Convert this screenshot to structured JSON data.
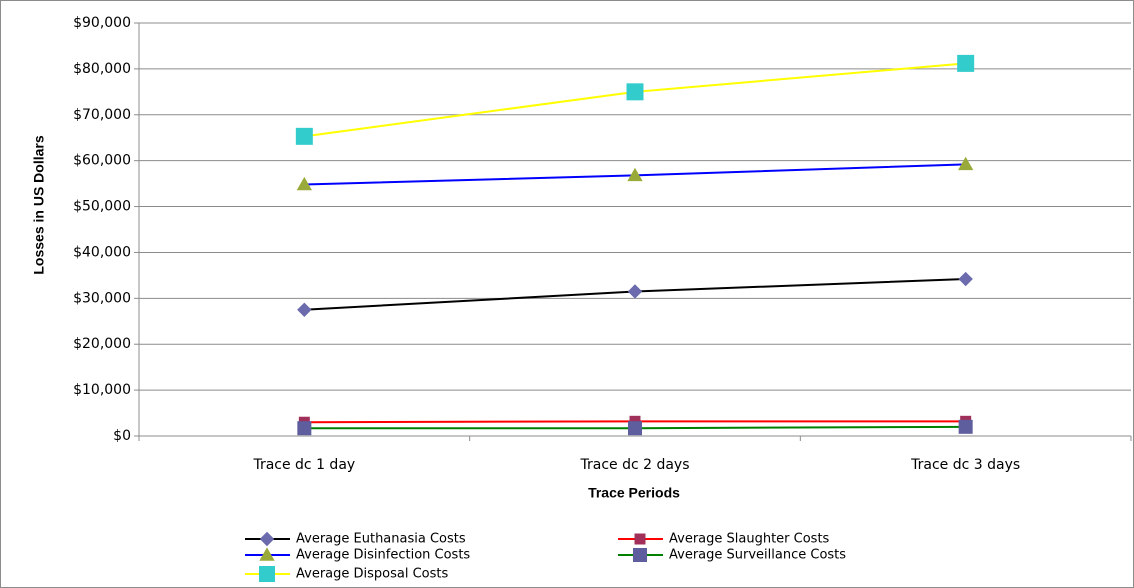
{
  "chart_data": {
    "type": "line",
    "title": "",
    "xlabel": "Trace Periods",
    "ylabel": "Losses in US Dollars",
    "categories": [
      "Trace dc 1 day",
      "Trace dc 2 days",
      "Trace dc 3 days"
    ],
    "ylim": [
      0,
      90000
    ],
    "yticks": [
      0,
      10000,
      20000,
      30000,
      40000,
      50000,
      60000,
      70000,
      80000,
      90000
    ],
    "ytick_labels": [
      "$0",
      "$10,000",
      "$20,000",
      "$30,000",
      "$40,000",
      "$50,000",
      "$60,000",
      "$70,000",
      "$80,000",
      "$90,000"
    ],
    "grid": "horizontal",
    "legend_position": "bottom",
    "series": [
      {
        "name": "Average Euthanasia Costs",
        "values": [
          27500,
          31500,
          34200
        ],
        "line_color": "#000000",
        "marker": "diamond",
        "marker_color": "#6B6BAE"
      },
      {
        "name": "Average Slaughter Costs",
        "values": [
          3000,
          3200,
          3200
        ],
        "line_color": "#FF0000",
        "marker": "square",
        "marker_color": "#A0305A"
      },
      {
        "name": "Average Disinfection Costs",
        "values": [
          54800,
          56800,
          59200
        ],
        "line_color": "#0000FF",
        "marker": "triangle",
        "marker_color": "#9AAA3A"
      },
      {
        "name": "Average Surveillance Costs",
        "values": [
          1700,
          1700,
          2000
        ],
        "line_color": "#008000",
        "marker": "square",
        "marker_color": "#5E5E9E"
      },
      {
        "name": "Average Disposal Costs",
        "values": [
          65300,
          75000,
          81200
        ],
        "line_color": "#FFFF00",
        "marker": "square",
        "marker_color": "#33CCCC"
      }
    ]
  }
}
